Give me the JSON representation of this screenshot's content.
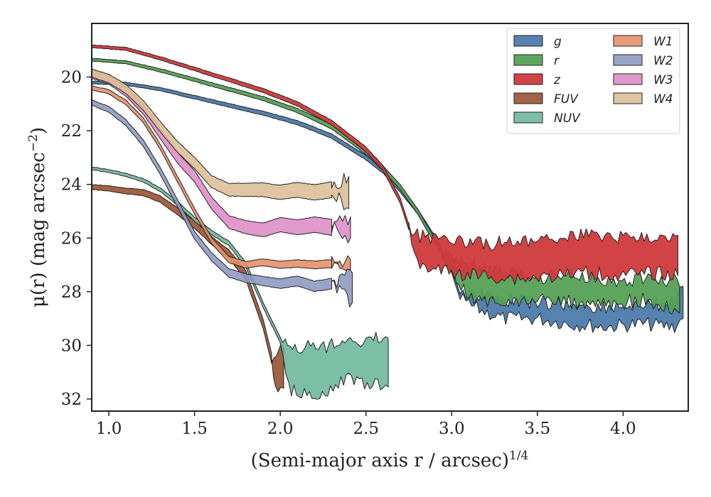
{
  "chart_data": {
    "type": "area",
    "xlabel": "(Semi-major axis r / arcsec)",
    "xlabel_sup": "1/4",
    "ylabel": "μ(r) (mag arcsec",
    "ylabel_sup": "−2",
    "ylabel_end": ")",
    "xlim": [
      0.9,
      4.38
    ],
    "ylim": [
      32.45,
      18.0
    ],
    "y_inverted": true,
    "xticks": [
      1.0,
      1.5,
      2.0,
      2.5,
      3.0,
      3.5,
      4.0
    ],
    "xtick_labels": [
      "1.0",
      "1.5",
      "2.0",
      "2.5",
      "3.0",
      "3.5",
      "4.0"
    ],
    "yticks": [
      20,
      22,
      24,
      26,
      28,
      30,
      32
    ],
    "ytick_labels": [
      "20",
      "22",
      "24",
      "26",
      "28",
      "30",
      "32"
    ],
    "grid": false,
    "legend_position": "top-right",
    "series": [
      {
        "name": "g",
        "color": "#4c7baa",
        "alpha": 0.95,
        "center": [
          [
            0.9,
            20.2
          ],
          [
            1.1,
            20.25
          ],
          [
            1.3,
            20.45
          ],
          [
            1.5,
            20.75
          ],
          [
            1.7,
            21.05
          ],
          [
            1.9,
            21.35
          ],
          [
            2.1,
            21.7
          ],
          [
            2.3,
            22.2
          ],
          [
            2.5,
            23.0
          ],
          [
            2.6,
            23.5
          ],
          [
            2.7,
            24.2
          ],
          [
            2.8,
            25.0
          ],
          [
            2.9,
            26.0
          ],
          [
            3.0,
            27.2
          ],
          [
            3.05,
            28.2
          ]
        ],
        "lower": [
          [
            3.05,
            28.2
          ],
          [
            3.1,
            28.5
          ],
          [
            3.3,
            29.0
          ],
          [
            3.5,
            29.0
          ],
          [
            3.7,
            29.2
          ],
          [
            3.9,
            29.3
          ],
          [
            4.1,
            29.2
          ],
          [
            4.3,
            29.3
          ],
          [
            4.35,
            29.0
          ]
        ],
        "upper": [
          [
            3.05,
            28.2
          ],
          [
            3.1,
            28.0
          ],
          [
            3.3,
            28.3
          ],
          [
            3.5,
            28.4
          ],
          [
            3.7,
            28.5
          ],
          [
            3.9,
            28.6
          ],
          [
            4.1,
            28.5
          ],
          [
            4.3,
            28.4
          ],
          [
            4.35,
            27.8
          ]
        ],
        "width": 0.1
      },
      {
        "name": "r",
        "color": "#55a156",
        "alpha": 0.95,
        "center": [
          [
            0.9,
            19.35
          ],
          [
            1.1,
            19.45
          ],
          [
            1.3,
            19.75
          ],
          [
            1.5,
            20.1
          ],
          [
            1.7,
            20.45
          ],
          [
            1.9,
            20.8
          ],
          [
            2.1,
            21.25
          ],
          [
            2.3,
            21.85
          ],
          [
            2.5,
            22.8
          ],
          [
            2.6,
            23.4
          ],
          [
            2.7,
            24.1
          ],
          [
            2.8,
            25.0
          ],
          [
            2.9,
            26.1
          ],
          [
            2.95,
            26.6
          ]
        ],
        "lower": [
          [
            2.95,
            26.6
          ],
          [
            3.1,
            28.3
          ],
          [
            3.3,
            28.4
          ],
          [
            3.5,
            28.3
          ],
          [
            3.7,
            28.4
          ],
          [
            3.9,
            28.5
          ],
          [
            4.1,
            28.3
          ],
          [
            4.3,
            28.6
          ],
          [
            4.33,
            28.8
          ]
        ],
        "upper": [
          [
            2.95,
            26.6
          ],
          [
            3.1,
            27.0
          ],
          [
            3.3,
            27.3
          ],
          [
            3.5,
            27.5
          ],
          [
            3.7,
            27.4
          ],
          [
            3.9,
            27.6
          ],
          [
            4.1,
            27.5
          ],
          [
            4.3,
            27.6
          ],
          [
            4.33,
            27.8
          ]
        ],
        "width": 0.1
      },
      {
        "name": "z",
        "color": "#d0393c",
        "alpha": 0.95,
        "center": [
          [
            0.9,
            18.85
          ],
          [
            1.1,
            18.95
          ],
          [
            1.3,
            19.3
          ],
          [
            1.5,
            19.7
          ],
          [
            1.7,
            20.1
          ],
          [
            1.9,
            20.5
          ],
          [
            2.1,
            21.0
          ],
          [
            2.3,
            21.7
          ],
          [
            2.5,
            22.7
          ],
          [
            2.6,
            23.4
          ],
          [
            2.7,
            24.6
          ],
          [
            2.75,
            25.6
          ]
        ],
        "lower": [
          [
            2.75,
            25.6
          ],
          [
            2.8,
            27.0
          ],
          [
            3.0,
            27.3
          ],
          [
            3.2,
            27.4
          ],
          [
            3.4,
            27.5
          ],
          [
            3.6,
            27.4
          ],
          [
            3.8,
            27.3
          ],
          [
            4.0,
            27.4
          ],
          [
            4.2,
            27.3
          ],
          [
            4.32,
            27.4
          ]
        ],
        "upper": [
          [
            2.75,
            25.6
          ],
          [
            2.8,
            25.9
          ],
          [
            3.0,
            26.0
          ],
          [
            3.2,
            26.2
          ],
          [
            3.4,
            26.1
          ],
          [
            3.6,
            26.0
          ],
          [
            3.8,
            25.9
          ],
          [
            4.0,
            26.0
          ],
          [
            4.2,
            25.9
          ],
          [
            4.32,
            25.9
          ]
        ],
        "width": 0.1
      },
      {
        "name": "FUV",
        "color": "#9c5c3c",
        "alpha": 0.95,
        "center": [
          [
            0.9,
            24.1
          ],
          [
            1.0,
            24.15
          ],
          [
            1.1,
            24.25
          ],
          [
            1.2,
            24.3
          ],
          [
            1.3,
            24.55
          ],
          [
            1.4,
            25.0
          ],
          [
            1.5,
            25.5
          ],
          [
            1.6,
            26.1
          ],
          [
            1.7,
            26.6
          ],
          [
            1.8,
            27.4
          ],
          [
            1.9,
            29.2
          ],
          [
            1.95,
            30.5
          ]
        ],
        "lower": [
          [
            1.95,
            30.5
          ],
          [
            1.97,
            31.7
          ],
          [
            2.02,
            31.6
          ]
        ],
        "upper": [
          [
            1.95,
            30.5
          ],
          [
            1.99,
            30.0
          ],
          [
            2.02,
            30.1
          ]
        ],
        "width": 0.18
      },
      {
        "name": "NUV",
        "color": "#66b397",
        "alpha": 0.85,
        "center": [
          [
            0.9,
            23.4
          ],
          [
            1.0,
            23.5
          ],
          [
            1.1,
            23.65
          ],
          [
            1.2,
            23.85
          ],
          [
            1.3,
            24.2
          ],
          [
            1.4,
            24.7
          ],
          [
            1.5,
            25.3
          ],
          [
            1.6,
            25.8
          ],
          [
            1.7,
            26.2
          ],
          [
            1.8,
            27.0
          ],
          [
            1.9,
            28.5
          ],
          [
            2.0,
            29.8
          ]
        ],
        "lower": [
          [
            2.0,
            29.8
          ],
          [
            2.05,
            31.6
          ],
          [
            2.2,
            31.85
          ],
          [
            2.4,
            31.3
          ],
          [
            2.63,
            31.55
          ]
        ],
        "upper": [
          [
            2.0,
            29.8
          ],
          [
            2.1,
            30.1
          ],
          [
            2.3,
            30.0
          ],
          [
            2.5,
            29.8
          ],
          [
            2.63,
            29.75
          ]
        ],
        "width": 0.1
      },
      {
        "name": "W1",
        "color": "#e8906a",
        "alpha": 0.9,
        "center": [
          [
            0.9,
            20.4
          ],
          [
            1.0,
            20.55
          ],
          [
            1.1,
            20.95
          ],
          [
            1.2,
            21.6
          ],
          [
            1.3,
            22.6
          ],
          [
            1.4,
            23.8
          ],
          [
            1.5,
            25.0
          ],
          [
            1.6,
            26.1
          ],
          [
            1.7,
            26.8
          ],
          [
            1.8,
            27.0
          ],
          [
            1.9,
            26.9
          ],
          [
            2.0,
            27.0
          ],
          [
            2.1,
            26.95
          ],
          [
            2.2,
            27.0
          ],
          [
            2.3,
            26.95
          ]
        ],
        "lower": [
          [
            2.3,
            26.95
          ],
          [
            2.41,
            27.2
          ]
        ],
        "upper": [
          [
            2.3,
            26.95
          ],
          [
            2.41,
            26.8
          ]
        ],
        "width": 0.15
      },
      {
        "name": "W2",
        "color": "#8e9ac2",
        "alpha": 0.9,
        "center": [
          [
            0.9,
            20.95
          ],
          [
            1.0,
            21.2
          ],
          [
            1.1,
            21.7
          ],
          [
            1.2,
            22.45
          ],
          [
            1.3,
            23.5
          ],
          [
            1.4,
            24.7
          ],
          [
            1.5,
            25.9
          ],
          [
            1.6,
            26.7
          ],
          [
            1.7,
            27.3
          ],
          [
            1.8,
            27.5
          ],
          [
            1.9,
            27.6
          ],
          [
            2.0,
            27.7
          ],
          [
            2.1,
            27.6
          ],
          [
            2.2,
            27.8
          ],
          [
            2.3,
            27.7
          ]
        ],
        "lower": [
          [
            2.3,
            27.7
          ],
          [
            2.42,
            28.4
          ]
        ],
        "upper": [
          [
            2.3,
            27.7
          ],
          [
            2.42,
            27.3
          ]
        ],
        "width": 0.2
      },
      {
        "name": "W3",
        "color": "#de8fc8",
        "alpha": 0.9,
        "center": [
          [
            0.9,
            19.9
          ],
          [
            1.0,
            20.1
          ],
          [
            1.1,
            20.55
          ],
          [
            1.2,
            21.2
          ],
          [
            1.3,
            22.1
          ],
          [
            1.4,
            23.0
          ],
          [
            1.5,
            23.7
          ],
          [
            1.6,
            24.7
          ],
          [
            1.7,
            25.4
          ],
          [
            1.8,
            25.6
          ],
          [
            1.9,
            25.7
          ],
          [
            2.0,
            25.5
          ],
          [
            2.1,
            25.6
          ],
          [
            2.2,
            25.5
          ],
          [
            2.3,
            25.6
          ]
        ],
        "lower": [
          [
            2.3,
            25.6
          ],
          [
            2.41,
            26.0
          ]
        ],
        "upper": [
          [
            2.3,
            25.6
          ],
          [
            2.41,
            25.2
          ]
        ],
        "width": 0.3
      },
      {
        "name": "W4",
        "color": "#dcbf97",
        "alpha": 0.9,
        "center": [
          [
            0.9,
            19.85
          ],
          [
            1.0,
            20.05
          ],
          [
            1.1,
            20.45
          ],
          [
            1.2,
            21.05
          ],
          [
            1.3,
            21.85
          ],
          [
            1.4,
            22.6
          ],
          [
            1.5,
            23.2
          ],
          [
            1.6,
            23.9
          ],
          [
            1.7,
            24.2
          ],
          [
            1.8,
            24.2
          ],
          [
            1.9,
            24.2
          ],
          [
            2.0,
            24.3
          ],
          [
            2.1,
            24.2
          ],
          [
            2.2,
            24.3
          ],
          [
            2.3,
            24.2
          ]
        ],
        "lower": [
          [
            2.3,
            24.2
          ],
          [
            2.4,
            24.9
          ]
        ],
        "upper": [
          [
            2.3,
            24.2
          ],
          [
            2.4,
            23.7
          ]
        ],
        "width": 0.3
      }
    ]
  }
}
